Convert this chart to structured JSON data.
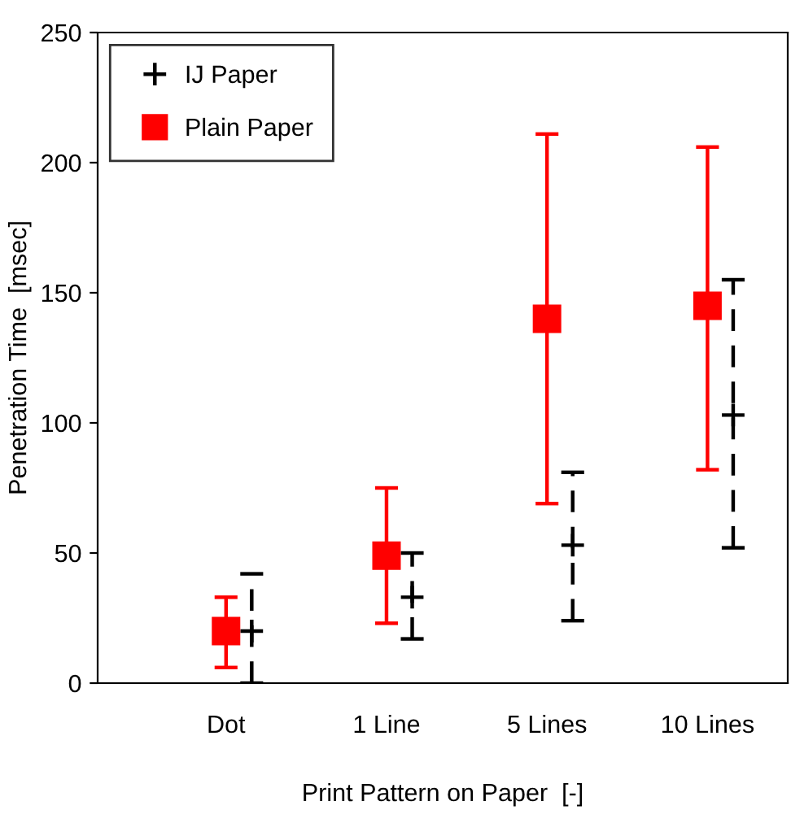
{
  "chart_data": {
    "type": "scatter",
    "xlabel": "Print Pattern on Paper  [-]",
    "ylabel": "Penetration Time  [msec]",
    "categories": [
      "Dot",
      "1 Line",
      "5 Lines",
      "10 Lines"
    ],
    "series": [
      {
        "name": "IJ Paper",
        "color": "#000000",
        "marker": "cross",
        "line_style": "dashed",
        "values": [
          20,
          33,
          53,
          103
        ],
        "errors": [
          [
            0,
            42
          ],
          [
            17,
            50
          ],
          [
            24,
            81
          ],
          [
            52,
            155
          ]
        ]
      },
      {
        "name": "Plain Paper",
        "color": "#ff0000",
        "marker": "square",
        "line_style": "solid",
        "values": [
          20,
          49,
          140,
          145
        ],
        "errors": [
          [
            6,
            33
          ],
          [
            23,
            75
          ],
          [
            69,
            211
          ],
          [
            82,
            206
          ]
        ]
      }
    ],
    "ylim": [
      0,
      250
    ],
    "yticks": [
      0,
      50,
      100,
      150,
      200,
      250
    ],
    "grid": false,
    "legend": "top left"
  }
}
